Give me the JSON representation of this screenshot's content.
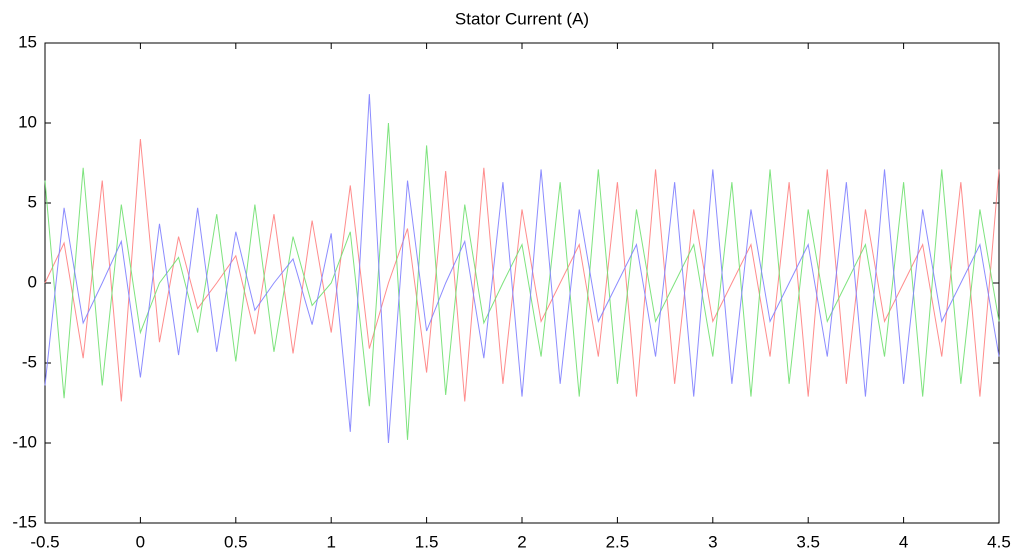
{
  "chart_data": {
    "type": "line",
    "title": "Stator Current (A)",
    "x": [
      -0.5,
      -0.4,
      -0.3,
      -0.2,
      -0.1,
      0,
      0.1,
      0.2,
      0.3,
      0.4,
      0.5,
      0.6,
      0.7,
      0.8,
      0.9,
      1.0,
      1.1,
      1.2,
      1.3,
      1.4,
      1.5,
      1.6,
      1.7,
      1.8,
      1.9,
      2.0,
      2.1,
      2.2,
      2.3,
      2.4,
      2.5,
      2.6,
      2.7,
      2.8,
      2.9,
      3.0,
      3.1,
      3.2,
      3.3,
      3.4,
      3.5,
      3.6,
      3.7,
      3.8,
      3.9,
      4.0,
      4.1,
      4.2,
      4.3,
      4.4,
      4.5
    ],
    "series": [
      {
        "color": "#ff8080",
        "values": [
          0,
          2.5,
          -4.7,
          6.4,
          -7.4,
          9.0,
          -3.7,
          2.9,
          -1.6,
          0,
          1.7,
          -3.2,
          4.3,
          -4.4,
          3.9,
          -3.1,
          6.1,
          -4.1,
          0,
          3.4,
          -5.6,
          7.0,
          -7.4,
          7.2,
          -6.3,
          4.6,
          -2.4,
          0,
          2.4,
          -4.6,
          6.3,
          -7.1,
          7.1,
          -6.3,
          4.6,
          -2.4,
          0,
          2.4,
          -4.6,
          6.3,
          -7.1,
          7.1,
          -6.3,
          4.6,
          -2.4,
          0,
          2.4,
          -4.6,
          6.3,
          -7.1,
          7.1
        ]
      },
      {
        "color": "#70e070",
        "values": [
          6.4,
          -7.2,
          7.2,
          -6.4,
          4.9,
          -3.1,
          0,
          1.6,
          -3.1,
          4.3,
          -4.9,
          4.9,
          -4.3,
          2.9,
          -1.4,
          0,
          3.2,
          -7.7,
          10.0,
          -9.8,
          8.6,
          -7.0,
          4.9,
          -2.5,
          0,
          2.4,
          -4.6,
          6.3,
          -7.1,
          7.1,
          -6.3,
          4.6,
          -2.4,
          0,
          2.4,
          -4.6,
          6.3,
          -7.1,
          7.1,
          -6.3,
          4.6,
          -2.4,
          0,
          2.4,
          -4.6,
          6.3,
          -7.1,
          7.1,
          -6.3,
          4.6,
          -2.4
        ]
      },
      {
        "color": "#7f7fff",
        "values": [
          -6.4,
          4.7,
          -2.5,
          0,
          2.6,
          -5.9,
          3.7,
          -4.5,
          4.7,
          -4.3,
          3.2,
          -1.7,
          0,
          1.5,
          -2.6,
          3.1,
          -9.3,
          11.8,
          -10.0,
          6.4,
          -3.0,
          0,
          2.6,
          -4.7,
          6.3,
          -7.1,
          7.1,
          -6.3,
          4.6,
          -2.4,
          0,
          2.4,
          -4.6,
          6.3,
          -7.1,
          7.1,
          -6.3,
          4.6,
          -2.4,
          0,
          2.4,
          -4.6,
          6.3,
          -7.1,
          7.1,
          -6.3,
          4.6,
          -2.4,
          0,
          2.4,
          -4.6
        ]
      }
    ],
    "xlim": [
      -0.5,
      4.5
    ],
    "xticks": [
      -0.5,
      0,
      0.5,
      1,
      1.5,
      2,
      2.5,
      3,
      3.5,
      4,
      4.5
    ],
    "ylim": [
      -15,
      15
    ],
    "yticks": [
      -15,
      -10,
      -5,
      0,
      5,
      10,
      15
    ],
    "grid": false
  }
}
